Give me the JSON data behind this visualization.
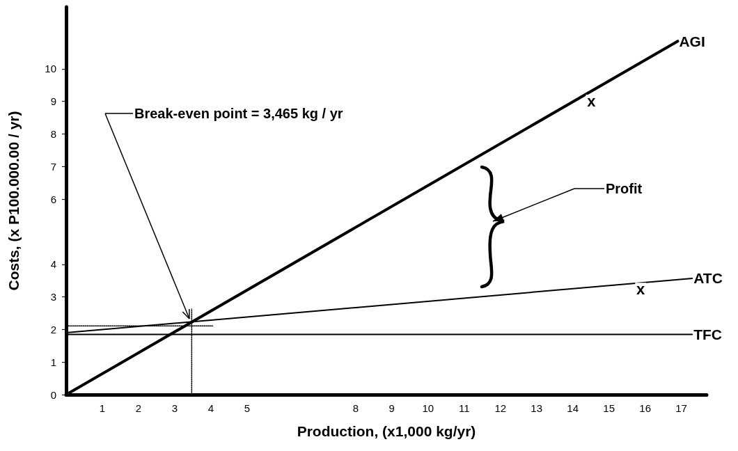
{
  "chart_data": {
    "type": "line",
    "xlabel": "Production, (x1,000 kg/yr)",
    "ylabel": "Costs, (x P100.000.00 / yr)",
    "xlim": [
      0,
      17.7
    ],
    "ylim": [
      0,
      11.9
    ],
    "xticks": [
      1,
      2,
      3,
      4,
      5,
      8,
      9,
      10,
      11,
      12,
      13,
      14,
      15,
      16,
      17
    ],
    "yticks": [
      0,
      1,
      2,
      3,
      4,
      6,
      7,
      8,
      9,
      10
    ],
    "grid": false,
    "legend": false,
    "marker": "none",
    "series": [
      {
        "name": "AGI",
        "color": "#000000",
        "x": [
          0,
          16.9
        ],
        "values": [
          0,
          10.85
        ]
      },
      {
        "name": "ATC",
        "color": "#000000",
        "x": [
          0,
          17.3
        ],
        "values": [
          1.9,
          3.57
        ]
      },
      {
        "name": "TFC",
        "color": "#000000",
        "x": [
          0,
          17.3
        ],
        "values": [
          1.85,
          1.85
        ]
      },
      {
        "color": "#000000",
        "line_style": "dotted",
        "x": [
          0,
          4.05
        ],
        "values": [
          2.11,
          2.11
        ]
      },
      {
        "color": "#000000",
        "line_style": "dotted",
        "x": [
          3.47,
          3.47
        ],
        "values": [
          0,
          2.63
        ]
      }
    ],
    "annotations": [
      "Break-even point = 3,465 kg / yr",
      "Profit",
      {
        "text": "x",
        "x": 14.4,
        "y": 9.1
      },
      {
        "text": "x",
        "x": 15.8,
        "y": 3.37
      }
    ]
  }
}
